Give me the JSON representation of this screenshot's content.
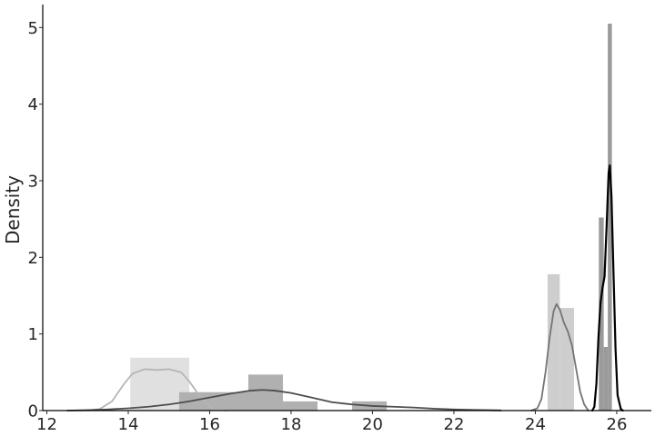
{
  "chart_data": {
    "type": "histogram-kde",
    "title": "",
    "xlabel": "",
    "ylabel": "Density",
    "xlim": [
      11.9,
      26.85
    ],
    "ylim": [
      0,
      5.3
    ],
    "xticks": [
      12,
      14,
      16,
      18,
      20,
      22,
      24,
      26
    ],
    "yticks": [
      0,
      1,
      2,
      3,
      4,
      5
    ],
    "grid": false,
    "legend": "none",
    "series": [
      {
        "color": "#e0e0e0",
        "kde_color": "#b5b5b5",
        "bins": [
          {
            "x0": 14.05,
            "x1": 15.5,
            "density": 0.69
          },
          {
            "x0": 15.5,
            "x1": 16.95,
            "density": 0.23
          }
        ],
        "kde": [
          [
            13.0,
            0.0
          ],
          [
            13.3,
            0.02
          ],
          [
            13.6,
            0.12
          ],
          [
            13.9,
            0.35
          ],
          [
            14.1,
            0.48
          ],
          [
            14.4,
            0.54
          ],
          [
            14.7,
            0.53
          ],
          [
            15.0,
            0.54
          ],
          [
            15.3,
            0.5
          ],
          [
            15.5,
            0.38
          ],
          [
            15.7,
            0.23
          ],
          [
            15.9,
            0.1
          ],
          [
            16.1,
            0.02
          ],
          [
            16.4,
            0.0
          ]
        ]
      },
      {
        "color": "#b0b0b0",
        "kde_color": "#4d4d4d",
        "bins": [
          {
            "x0": 15.25,
            "x1": 16.1,
            "density": 0.24
          },
          {
            "x0": 16.1,
            "x1": 16.95,
            "density": 0.24
          },
          {
            "x0": 16.95,
            "x1": 17.8,
            "density": 0.47
          },
          {
            "x0": 17.8,
            "x1": 18.65,
            "density": 0.12
          },
          {
            "x0": 19.5,
            "x1": 20.35,
            "density": 0.12
          }
        ],
        "kde": [
          [
            12.5,
            0.0
          ],
          [
            13.0,
            0.005
          ],
          [
            13.5,
            0.015
          ],
          [
            14.0,
            0.03
          ],
          [
            14.5,
            0.05
          ],
          [
            15.0,
            0.08
          ],
          [
            15.5,
            0.12
          ],
          [
            16.0,
            0.17
          ],
          [
            16.5,
            0.22
          ],
          [
            17.0,
            0.26
          ],
          [
            17.3,
            0.27
          ],
          [
            17.6,
            0.26
          ],
          [
            18.0,
            0.23
          ],
          [
            18.5,
            0.17
          ],
          [
            19.0,
            0.11
          ],
          [
            19.5,
            0.08
          ],
          [
            20.0,
            0.06
          ],
          [
            20.5,
            0.05
          ],
          [
            21.0,
            0.04
          ],
          [
            21.5,
            0.025
          ],
          [
            22.0,
            0.015
          ],
          [
            22.5,
            0.008
          ],
          [
            23.15,
            0.002
          ]
        ]
      },
      {
        "color": "#cecece",
        "kde_color": "#747474",
        "bins": [
          {
            "x0": 24.3,
            "x1": 24.6,
            "density": 1.78
          },
          {
            "x0": 24.6,
            "x1": 24.95,
            "density": 1.34
          }
        ],
        "kde": [
          [
            23.9,
            0.0
          ],
          [
            24.05,
            0.03
          ],
          [
            24.15,
            0.15
          ],
          [
            24.25,
            0.5
          ],
          [
            24.35,
            0.95
          ],
          [
            24.45,
            1.3
          ],
          [
            24.52,
            1.39
          ],
          [
            24.6,
            1.32
          ],
          [
            24.7,
            1.15
          ],
          [
            24.8,
            1.03
          ],
          [
            24.9,
            0.85
          ],
          [
            25.0,
            0.55
          ],
          [
            25.1,
            0.25
          ],
          [
            25.2,
            0.08
          ],
          [
            25.3,
            0.0
          ]
        ]
      },
      {
        "color": "#9a9a9a",
        "kde_color": "#000000",
        "bins": [
          {
            "x0": 25.56,
            "x1": 25.68,
            "density": 2.52
          },
          {
            "x0": 25.68,
            "x1": 25.78,
            "density": 0.83
          },
          {
            "x0": 25.78,
            "x1": 25.88,
            "density": 5.05
          }
        ],
        "kde": [
          [
            25.4,
            0.0
          ],
          [
            25.45,
            0.05
          ],
          [
            25.5,
            0.35
          ],
          [
            25.55,
            0.95
          ],
          [
            25.6,
            1.4
          ],
          [
            25.65,
            1.6
          ],
          [
            25.7,
            1.75
          ],
          [
            25.75,
            2.4
          ],
          [
            25.8,
            3.1
          ],
          [
            25.83,
            3.2
          ],
          [
            25.87,
            2.8
          ],
          [
            25.92,
            1.8
          ],
          [
            25.97,
            0.8
          ],
          [
            26.02,
            0.2
          ],
          [
            26.1,
            0.02
          ],
          [
            26.15,
            0.0
          ]
        ]
      }
    ]
  }
}
